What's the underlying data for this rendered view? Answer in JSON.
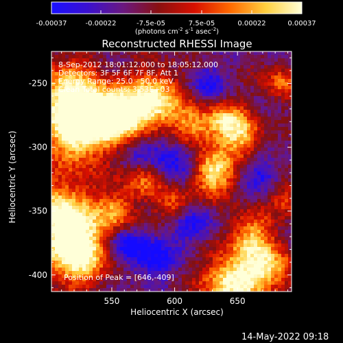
{
  "colorbar": {
    "ticks": [
      "-0.00037",
      "-0.00022",
      "-7.5e-05",
      "7.5e-05",
      "0.00022",
      "0.00037"
    ],
    "unit_text": "(photons cm",
    "unit_exp1": "-2",
    "unit_mid": " s",
    "unit_exp2": "-1",
    "unit_mid2": " asec",
    "unit_exp3": "-2",
    "unit_close": ")",
    "stops": [
      "#1a10ff",
      "#3a10d0",
      "#6a1880",
      "#8a1010",
      "#d81000",
      "#ff6a00",
      "#ffd040",
      "#ffffd8"
    ]
  },
  "image_header": [
    "8-Sep-2012 18:01:12.000 to 18:05:12.000",
    "Detectors: 3F 5F 6F 7F 8F, Att 1",
    "Energy Range: 25.0 - 50.0 keV",
    "Clean    Total counts: 3.53E+03"
  ],
  "peak_label": "Position of Peak = [646,-409]",
  "timestamp": "14-May-2022 09:18",
  "chart_data": {
    "type": "heatmap",
    "title": "Reconstructed RHESSI Image",
    "xlabel": "Heliocentric X (arcsec)",
    "ylabel": "Heliocentric Y (arcsec)",
    "xlim": [
      502,
      693
    ],
    "ylim": [
      -413,
      -225
    ],
    "x_ticks": [
      550,
      600,
      650
    ],
    "y_ticks": [
      -250,
      -300,
      -350,
      -400
    ],
    "colorbar_range": [
      -0.00037,
      0.00037
    ],
    "peak_position": [
      646,
      -409
    ],
    "bright_regions_arcsec": [
      {
        "x": 515,
        "y": -262,
        "w": 28,
        "strength": 0.9
      },
      {
        "x": 525,
        "y": -290,
        "w": 24,
        "strength": 0.8
      },
      {
        "x": 565,
        "y": -280,
        "w": 22,
        "strength": 0.75
      },
      {
        "x": 585,
        "y": -262,
        "w": 22,
        "strength": 0.8
      },
      {
        "x": 545,
        "y": -272,
        "w": 18,
        "strength": 0.7
      },
      {
        "x": 615,
        "y": -285,
        "w": 16,
        "strength": 0.6
      },
      {
        "x": 640,
        "y": -280,
        "w": 16,
        "strength": 0.65
      },
      {
        "x": 655,
        "y": -292,
        "w": 16,
        "strength": 0.6
      },
      {
        "x": 630,
        "y": -320,
        "w": 18,
        "strength": 0.85
      },
      {
        "x": 575,
        "y": -325,
        "w": 16,
        "strength": 0.55
      },
      {
        "x": 512,
        "y": -355,
        "w": 28,
        "strength": 0.95
      },
      {
        "x": 522,
        "y": -385,
        "w": 24,
        "strength": 0.85
      },
      {
        "x": 555,
        "y": -350,
        "w": 14,
        "strength": 0.55
      },
      {
        "x": 600,
        "y": -345,
        "w": 14,
        "strength": 0.5
      },
      {
        "x": 660,
        "y": -368,
        "w": 18,
        "strength": 0.6
      },
      {
        "x": 645,
        "y": -405,
        "w": 22,
        "strength": 0.9
      },
      {
        "x": 675,
        "y": -395,
        "w": 20,
        "strength": 0.7
      },
      {
        "x": 685,
        "y": -250,
        "w": 14,
        "strength": 0.5
      },
      {
        "x": 690,
        "y": -340,
        "w": 12,
        "strength": 0.45
      }
    ],
    "dark_regions_arcsec": [
      {
        "x": 570,
        "y": -300,
        "w": 18,
        "strength": 0.7
      },
      {
        "x": 600,
        "y": -310,
        "w": 20,
        "strength": 0.75
      },
      {
        "x": 615,
        "y": -360,
        "w": 16,
        "strength": 0.7
      },
      {
        "x": 580,
        "y": -385,
        "w": 18,
        "strength": 0.8
      },
      {
        "x": 670,
        "y": -320,
        "w": 14,
        "strength": 0.6
      },
      {
        "x": 560,
        "y": -375,
        "w": 12,
        "strength": 0.6
      },
      {
        "x": 625,
        "y": -250,
        "w": 14,
        "strength": 0.6
      }
    ]
  }
}
